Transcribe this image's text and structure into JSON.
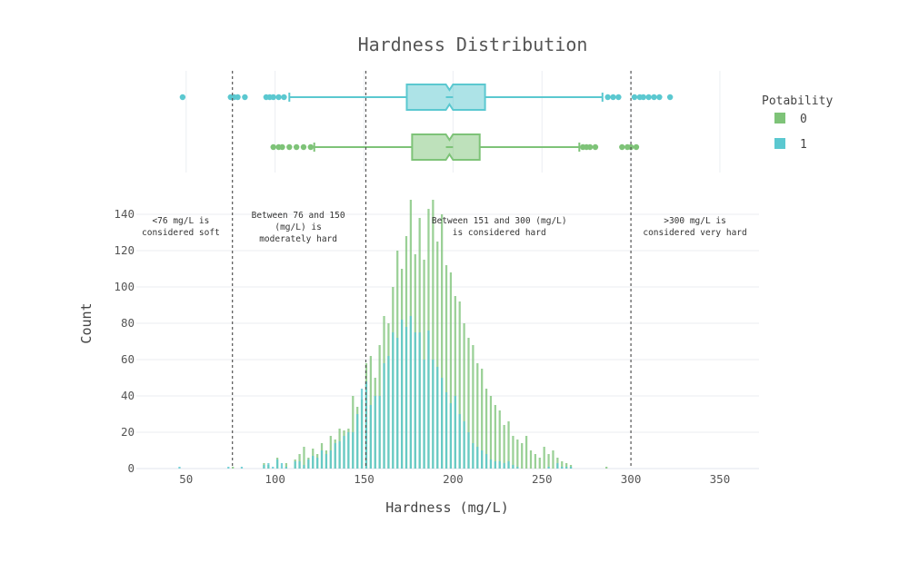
{
  "chart_data": {
    "type": "histogram",
    "title": "Hardness Distribution",
    "xlabel": "Hardness (mg/L)",
    "ylabel": "Count",
    "xlim": [
      22,
      372
    ],
    "ylim": [
      0,
      150
    ],
    "x_ticks": [
      50,
      100,
      150,
      200,
      250,
      300,
      350
    ],
    "y_ticks": [
      0,
      20,
      40,
      60,
      80,
      100,
      120,
      140
    ],
    "bin_width": 2.5,
    "bin_centers": [
      46.25,
      73.75,
      76.25,
      81.25,
      88.75,
      93.75,
      96.25,
      98.75,
      101.25,
      103.75,
      106.25,
      108.75,
      111.25,
      113.75,
      116.25,
      118.75,
      121.25,
      123.75,
      126.25,
      128.75,
      131.25,
      133.75,
      136.25,
      138.75,
      141.25,
      143.75,
      146.25,
      148.75,
      151.25,
      153.75,
      156.25,
      158.75,
      161.25,
      163.75,
      166.25,
      168.75,
      171.25,
      173.75,
      176.25,
      178.75,
      181.25,
      183.75,
      186.25,
      188.75,
      191.25,
      193.75,
      196.25,
      198.75,
      201.25,
      203.75,
      206.25,
      208.75,
      211.25,
      213.75,
      216.25,
      218.75,
      221.25,
      223.75,
      226.25,
      228.75,
      231.25,
      233.75,
      236.25,
      238.75,
      241.25,
      243.75,
      246.25,
      248.75,
      251.25,
      253.75,
      256.25,
      258.75,
      261.25,
      263.75,
      266.25,
      268.75,
      271.25,
      273.75,
      276.25,
      278.75,
      281.25,
      283.75,
      286.25,
      288.75,
      291.25,
      293.75,
      296.25,
      298.75,
      301.25,
      303.75,
      306.25,
      308.75,
      311.25,
      313.75,
      316.25,
      318.75,
      321.25
    ],
    "series": [
      {
        "name": "0",
        "color": "#7ec378",
        "values": [
          0,
          0,
          1,
          0,
          0,
          3,
          2,
          0,
          6,
          0,
          3,
          0,
          5,
          8,
          12,
          6,
          11,
          8,
          14,
          10,
          18,
          16,
          22,
          21,
          22,
          40,
          34,
          38,
          58,
          62,
          50,
          68,
          84,
          80,
          100,
          120,
          110,
          128,
          148,
          118,
          138,
          115,
          143,
          148,
          125,
          140,
          112,
          108,
          95,
          92,
          80,
          72,
          68,
          58,
          55,
          44,
          40,
          35,
          32,
          24,
          26,
          18,
          16,
          14,
          18,
          10,
          8,
          6,
          12,
          8,
          10,
          6,
          4,
          3,
          2,
          0,
          0,
          0,
          0,
          0,
          0,
          0,
          1,
          0,
          0,
          0,
          0,
          0,
          0,
          0,
          0,
          0,
          0,
          0,
          0,
          0,
          0
        ]
      },
      {
        "name": "1",
        "color": "#5bc8d0",
        "values": [
          1,
          1,
          0,
          1,
          0,
          2,
          3,
          1,
          5,
          3,
          1,
          0,
          4,
          4,
          2,
          5,
          7,
          6,
          10,
          8,
          10,
          14,
          15,
          18,
          20,
          20,
          30,
          44,
          48,
          35,
          40,
          40,
          58,
          62,
          75,
          72,
          82,
          78,
          84,
          75,
          75,
          60,
          76,
          60,
          56,
          50,
          42,
          36,
          40,
          30,
          26,
          20,
          14,
          12,
          10,
          8,
          5,
          4,
          4,
          3,
          4,
          2,
          1,
          0,
          0,
          0,
          0,
          0,
          0,
          1,
          0,
          3,
          1,
          1,
          1,
          0,
          0,
          0,
          0,
          0,
          0,
          0,
          0,
          0,
          0,
          0,
          0,
          0,
          0,
          0,
          0,
          0,
          0,
          0,
          0,
          0,
          0
        ]
      }
    ],
    "box_plots": [
      {
        "name": "1",
        "color": "#5bc8d0",
        "q1": 174,
        "median": 198,
        "q3": 218,
        "notch_low": 196,
        "notch_high": 200,
        "whisker_low": 108,
        "whisker_high": 284,
        "outliers": [
          48,
          75,
          77,
          79,
          83,
          95,
          97,
          99,
          102,
          105,
          287,
          290,
          293,
          302,
          305,
          307,
          310,
          313,
          316,
          322
        ]
      },
      {
        "name": "0",
        "color": "#7ec378",
        "q1": 177,
        "median": 198,
        "q3": 215,
        "notch_low": 196,
        "notch_high": 200,
        "whisker_low": 122,
        "whisker_high": 271,
        "outliers": [
          99,
          102,
          104,
          108,
          112,
          116,
          120,
          273,
          275,
          277,
          280,
          295,
          298,
          300,
          303
        ]
      }
    ],
    "vlines": [
      76,
      151,
      300
    ],
    "annotations": [
      {
        "x": 47,
        "lines": [
          "<76 mg/L is",
          "considered soft"
        ]
      },
      {
        "x": 113,
        "lines": [
          "Between 76 and 150",
          "(mg/L) is",
          "moderately hard"
        ]
      },
      {
        "x": 226,
        "lines": [
          "Between 151 and 300 (mg/L)",
          "is considered hard"
        ]
      },
      {
        "x": 336,
        "lines": [
          ">300 mg/L is",
          "considered very hard"
        ]
      }
    ],
    "legend": {
      "title": "Potability",
      "position": "top-right",
      "items": [
        {
          "label": "0",
          "color": "#7ec378"
        },
        {
          "label": "1",
          "color": "#5bc8d0"
        }
      ]
    }
  }
}
